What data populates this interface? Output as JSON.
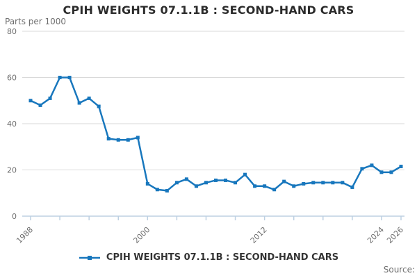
{
  "title": "CPIH WEIGHTS 07.1.1B : SECOND-HAND CARS",
  "unit_label": "Parts per 1000",
  "source_label": "Source:",
  "legend": {
    "label": "CPIH WEIGHTS 07.1.1B : SECOND-HAND CARS"
  },
  "colors": {
    "line": "#1877bd",
    "grid": "#d9d9d9",
    "axis": "#bdd0e2",
    "tick_text": "#6e6e6e",
    "title_text": "#2b2b2b",
    "legend_text": "#333333"
  },
  "chart_data": {
    "type": "line",
    "title": "CPIH WEIGHTS 07.1.1B : SECOND-HAND CARS",
    "ylabel": "Parts per 1000",
    "xlabel": "",
    "x": [
      1988,
      1989,
      1990,
      1991,
      1992,
      1993,
      1994,
      1995,
      1996,
      1997,
      1998,
      1999,
      2000,
      2001,
      2002,
      2003,
      2004,
      2005,
      2006,
      2007,
      2008,
      2009,
      2010,
      2011,
      2012,
      2013,
      2014,
      2015,
      2016,
      2017,
      2018,
      2019,
      2020,
      2021,
      2022,
      2023,
      2024,
      2025,
      2026
    ],
    "values": [
      50,
      48,
      51,
      60,
      60,
      49,
      51,
      47.5,
      33.5,
      33,
      33,
      34,
      14,
      11.5,
      11,
      14.5,
      16,
      13,
      14.5,
      15.5,
      15.5,
      14.5,
      18,
      13,
      13,
      11.5,
      15,
      13,
      14,
      14.5,
      14.5,
      14.5,
      14.5,
      12.5,
      20.5,
      22,
      19,
      19,
      21.5
    ],
    "ylim": [
      0,
      80
    ],
    "yticks": [
      0,
      20,
      40,
      60,
      80
    ],
    "xtick_labels": [
      "1988",
      "2000",
      "2012",
      "2024",
      "2026"
    ],
    "xtick_minor_interval_years": 3,
    "grid": true,
    "marker": "square",
    "legend_position": "bottom"
  }
}
